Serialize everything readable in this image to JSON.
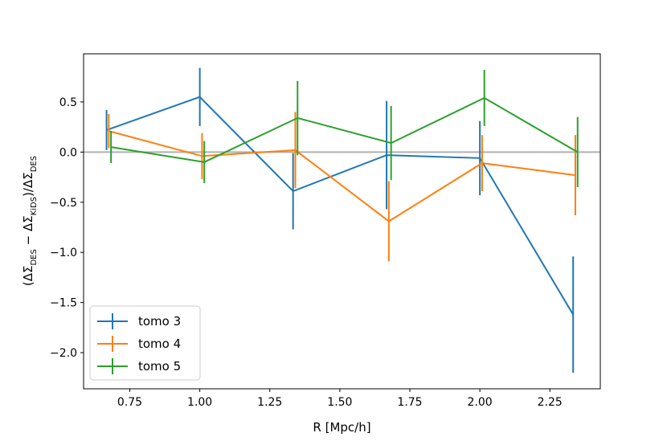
{
  "chart_data": {
    "type": "line",
    "title": "",
    "xlabel": "R [Mpc/h]",
    "ylabel": "(ΔΣ_DES − ΔΣ_KiDS)/ΔΣ_DES",
    "xlim": [
      0.585,
      2.43
    ],
    "ylim": [
      -2.36,
      0.98
    ],
    "xticks": [
      "0.75",
      "1.00",
      "1.25",
      "1.50",
      "1.75",
      "2.00",
      "2.25"
    ],
    "yticks": [
      "0.5",
      "0.0",
      "−0.5",
      "−1.0",
      "−1.5",
      "−2.0"
    ],
    "reference_line": {
      "y": 0.0,
      "color": "#b0b0b0"
    },
    "legend_position": "lower-left",
    "grid": false,
    "series": [
      {
        "name": "tomo 3",
        "color": "#1f77b4",
        "x": [
          0.667,
          1.0,
          1.333,
          1.667,
          2.0,
          2.333
        ],
        "y": [
          0.22,
          0.55,
          -0.39,
          -0.03,
          -0.06,
          -1.62
        ],
        "yerr": [
          0.2,
          0.29,
          0.38,
          0.54,
          0.37,
          0.58
        ]
      },
      {
        "name": "tomo 4",
        "color": "#ff7f0e",
        "x": [
          0.675,
          1.008,
          1.341,
          1.675,
          2.008,
          2.341
        ],
        "y": [
          0.21,
          -0.04,
          0.02,
          -0.69,
          -0.11,
          -0.23
        ],
        "yerr": [
          0.17,
          0.23,
          0.38,
          0.4,
          0.28,
          0.4
        ]
      },
      {
        "name": "tomo 5",
        "color": "#2ca02c",
        "x": [
          0.683,
          1.016,
          1.349,
          1.683,
          2.016,
          2.349
        ],
        "y": [
          0.05,
          -0.1,
          0.34,
          0.09,
          0.54,
          0.0
        ],
        "yerr": [
          0.16,
          0.21,
          0.37,
          0.37,
          0.28,
          0.35
        ]
      }
    ]
  }
}
